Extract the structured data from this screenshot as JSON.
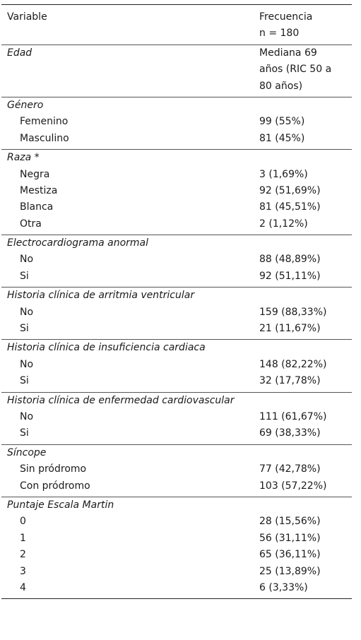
{
  "header": {
    "variable": "Variable",
    "frecuencia": "Frecuencia",
    "n": "n = 180"
  },
  "groups": [
    {
      "title": "Edad",
      "value_lines": [
        "Mediana 69",
        "años (RIC 50 a",
        "80 años)"
      ]
    },
    {
      "title": "Género",
      "rows": [
        {
          "label": "Femenino",
          "value": "99 (55%)"
        },
        {
          "label": "Masculino",
          "value": "81 (45%)"
        }
      ]
    },
    {
      "title": "Raza *",
      "rows": [
        {
          "label": "Negra",
          "value": "3 (1,69%)"
        },
        {
          "label": "Mestiza",
          "value": "92 (51,69%)"
        },
        {
          "label": "Blanca",
          "value": "81 (45,51%)"
        },
        {
          "label": "Otra",
          "value": "2 (1,12%)"
        }
      ]
    },
    {
      "title": "Electrocardiograma anormal",
      "rows": [
        {
          "label": "No",
          "value": "88 (48,89%)"
        },
        {
          "label": "Si",
          "value": "92 (51,11%)"
        }
      ]
    },
    {
      "title": "Historia clínica de arritmia ventricular",
      "rows": [
        {
          "label": "No",
          "value": "159 (88,33%)"
        },
        {
          "label": "Si",
          "value": "21 (11,67%)"
        }
      ]
    },
    {
      "title": "Historia clínica de insuficiencia cardiaca",
      "rows": [
        {
          "label": "No",
          "value": "148 (82,22%)"
        },
        {
          "label": "Si",
          "value": "32 (17,78%)"
        }
      ]
    },
    {
      "title": "Historia clínica de enfermedad cardiovascular",
      "rows": [
        {
          "label": "No",
          "value": "111 (61,67%)"
        },
        {
          "label": "Si",
          "value": "69 (38,33%)"
        }
      ]
    },
    {
      "title": "Síncope",
      "rows": [
        {
          "label": "Sin pródromo",
          "value": "77 (42,78%)"
        },
        {
          "label": "Con pródromo",
          "value": "103 (57,22%)"
        }
      ]
    },
    {
      "title": "Puntaje Escala Martin",
      "rows": [
        {
          "label": "0",
          "value": "28 (15,56%)"
        },
        {
          "label": "1",
          "value": "56 (31,11%)"
        },
        {
          "label": "2",
          "value": "65 (36,11%)"
        },
        {
          "label": "3",
          "value": "25 (13,89%)"
        },
        {
          "label": "4",
          "value": "6 (3,33%)"
        }
      ]
    }
  ]
}
